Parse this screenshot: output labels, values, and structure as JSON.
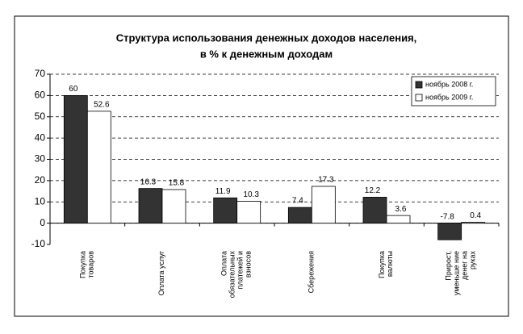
{
  "chart_data": {
    "type": "bar",
    "title": [
      "Структура использования денежных доходов населения,",
      "в % к денежным доходам"
    ],
    "categories": [
      [
        "Покупка",
        "товаров"
      ],
      [
        "Оплата услуг"
      ],
      [
        "Оплата",
        "обязательных",
        "платежей и",
        "взносов"
      ],
      [
        "Сбережения"
      ],
      [
        "Покупка",
        "валюты"
      ],
      [
        "Прирост,",
        "уменьше ние",
        "денег на",
        "руках"
      ]
    ],
    "series": [
      {
        "name": "ноябрь 2008 г.",
        "color": "#333333",
        "values": [
          60,
          16.3,
          11.9,
          7.4,
          12.2,
          -7.8
        ]
      },
      {
        "name": "ноябрь 2009 г.",
        "color": "#ffffff",
        "values": [
          52.6,
          15.8,
          10.3,
          17.3,
          3.6,
          0.4
        ]
      }
    ],
    "ylim": [
      -10,
      70
    ],
    "yticks": [
      -10,
      0,
      10,
      20,
      30,
      40,
      50,
      60,
      70
    ],
    "grid": true,
    "legend": "top-right"
  }
}
